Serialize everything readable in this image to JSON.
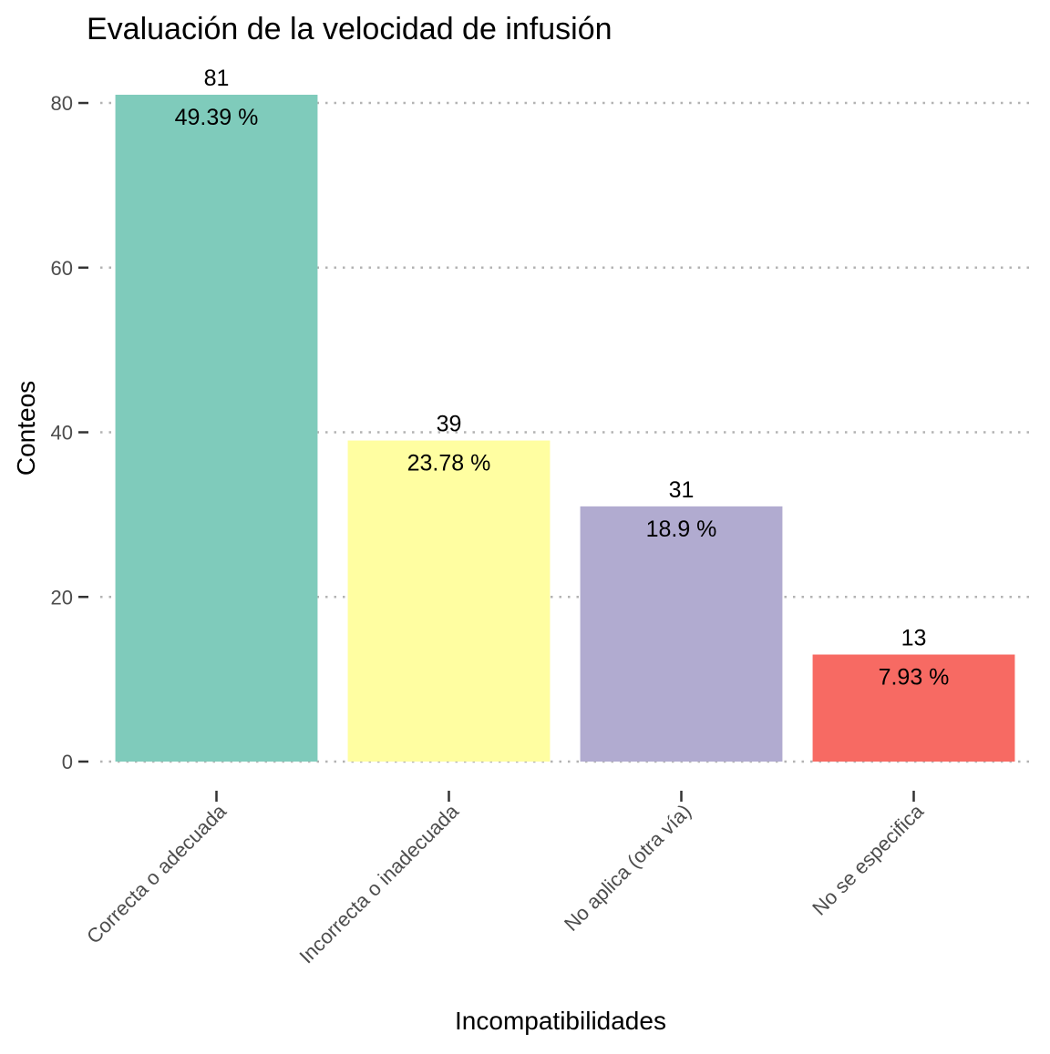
{
  "chart_data": {
    "type": "bar",
    "title": "Evaluación de la velocidad de infusión",
    "xlabel": "Incompatibilidades",
    "ylabel": "Conteos",
    "categories": [
      "Correcta o adecuada",
      "Incorrecta o inadecuada",
      "No aplica (otra vía)",
      "No se especifica"
    ],
    "values": [
      81,
      39,
      31,
      13
    ],
    "value_labels": [
      "81",
      "39",
      "31",
      "13"
    ],
    "percent_labels": [
      "49.39 %",
      "23.78 %",
      "18.9 %",
      "7.93 %"
    ],
    "colors": [
      "#7fcbbb",
      "#fffea1",
      "#b1abd0",
      "#f76a63"
    ],
    "ylim": [
      0,
      81
    ],
    "yticks": [
      0,
      20,
      40,
      60,
      80
    ],
    "ytick_labels": [
      "0",
      "20",
      "40",
      "60",
      "80"
    ],
    "grid": "horizontal-dotted",
    "legend": "none"
  }
}
